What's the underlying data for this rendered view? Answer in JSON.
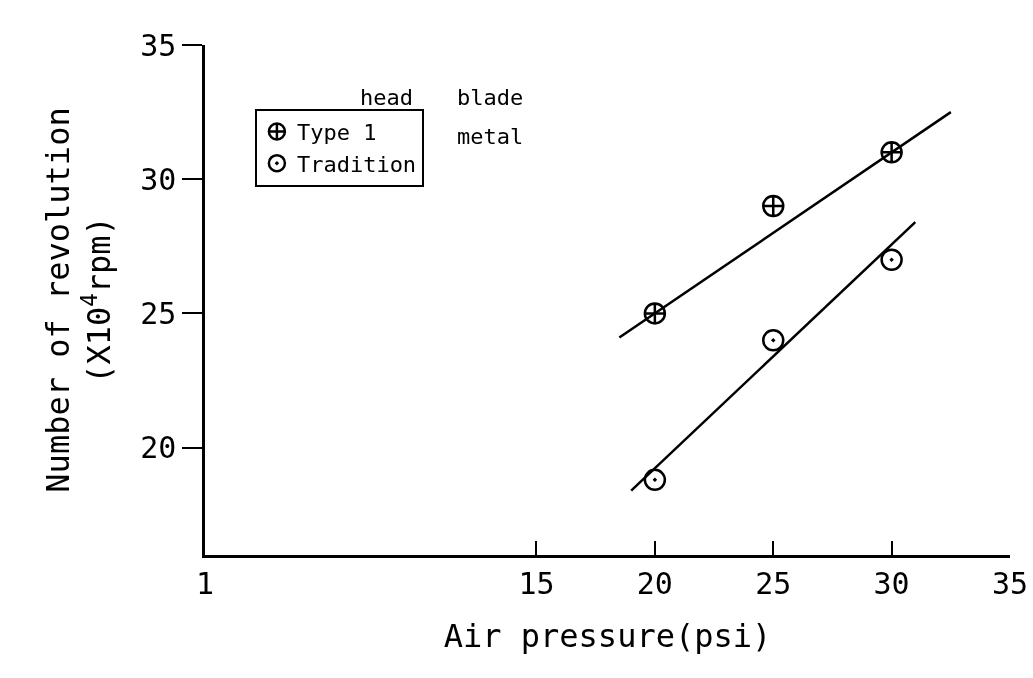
{
  "chart_data": {
    "type": "scatter",
    "xlabel": "Air pressure(psi)",
    "ylabel": "Number of revolution\n(X10$^{4}$rpm)",
    "xlim": [
      1,
      35
    ],
    "xticks": [
      1,
      15,
      20,
      25,
      30,
      35
    ],
    "ylim": [
      16,
      35
    ],
    "yticks": [
      20,
      25,
      30,
      35
    ],
    "series": [
      {
        "name": "Type 1",
        "color": "#000000",
        "marker": "cross",
        "x": [
          20,
          25,
          30
        ],
        "values": [
          25,
          29,
          31
        ]
      },
      {
        "name": "Tradition",
        "color": "#000000",
        "marker": "circle",
        "x": [
          20,
          25,
          30
        ],
        "values": [
          18.8,
          24,
          27
        ]
      },
      {
        "type": "line",
        "color": "#000000",
        "x": [
          18.5,
          32.5
        ],
        "values": [
          24.1,
          32.5
        ]
      },
      {
        "type": "line",
        "color": "#000000",
        "x": [
          19,
          31
        ],
        "values": [
          18.4,
          28.4
        ]
      }
    ],
    "annotations": [
      "head",
      "blade",
      "metal"
    ],
    "legend": "top left",
    "grid": false,
    "line_style": "solid"
  }
}
